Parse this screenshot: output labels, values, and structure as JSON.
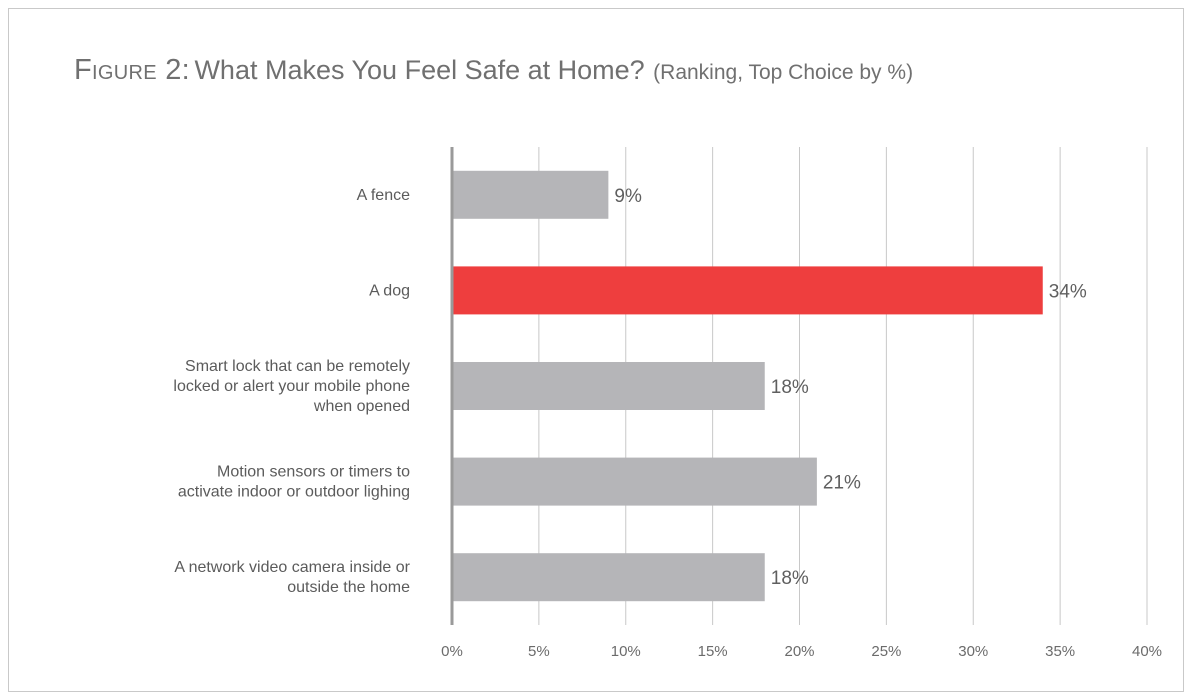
{
  "title": {
    "figure": "Figure 2:",
    "main": "What Makes You Feel Safe at Home?",
    "sub": "(Ranking, Top Choice by %)"
  },
  "colors": {
    "bar": "#b5b5b8",
    "highlight": "#ee3e3e",
    "grid": "#c8c8c8",
    "axis": "#9a9a9a"
  },
  "chart_data": {
    "type": "bar",
    "orientation": "horizontal",
    "categories": [
      [
        "A fence"
      ],
      [
        "A dog"
      ],
      [
        "Smart lock that can be remotely",
        "locked or alert your mobile phone",
        "when opened"
      ],
      [
        "Motion sensors or timers to",
        "activate indoor or outdoor lighing"
      ],
      [
        "A network video camera inside or",
        "outside the home"
      ]
    ],
    "values": [
      9,
      34,
      18,
      21,
      18
    ],
    "value_labels": [
      "9%",
      "34%",
      "18%",
      "21%",
      "18%"
    ],
    "highlight_index": 1,
    "xlim": [
      0,
      40
    ],
    "xticks": [
      0,
      5,
      10,
      15,
      20,
      25,
      30,
      35,
      40
    ],
    "xtick_labels": [
      "0%",
      "5%",
      "10%",
      "15%",
      "20%",
      "25%",
      "30%",
      "35%",
      "40%"
    ],
    "grid": true
  }
}
